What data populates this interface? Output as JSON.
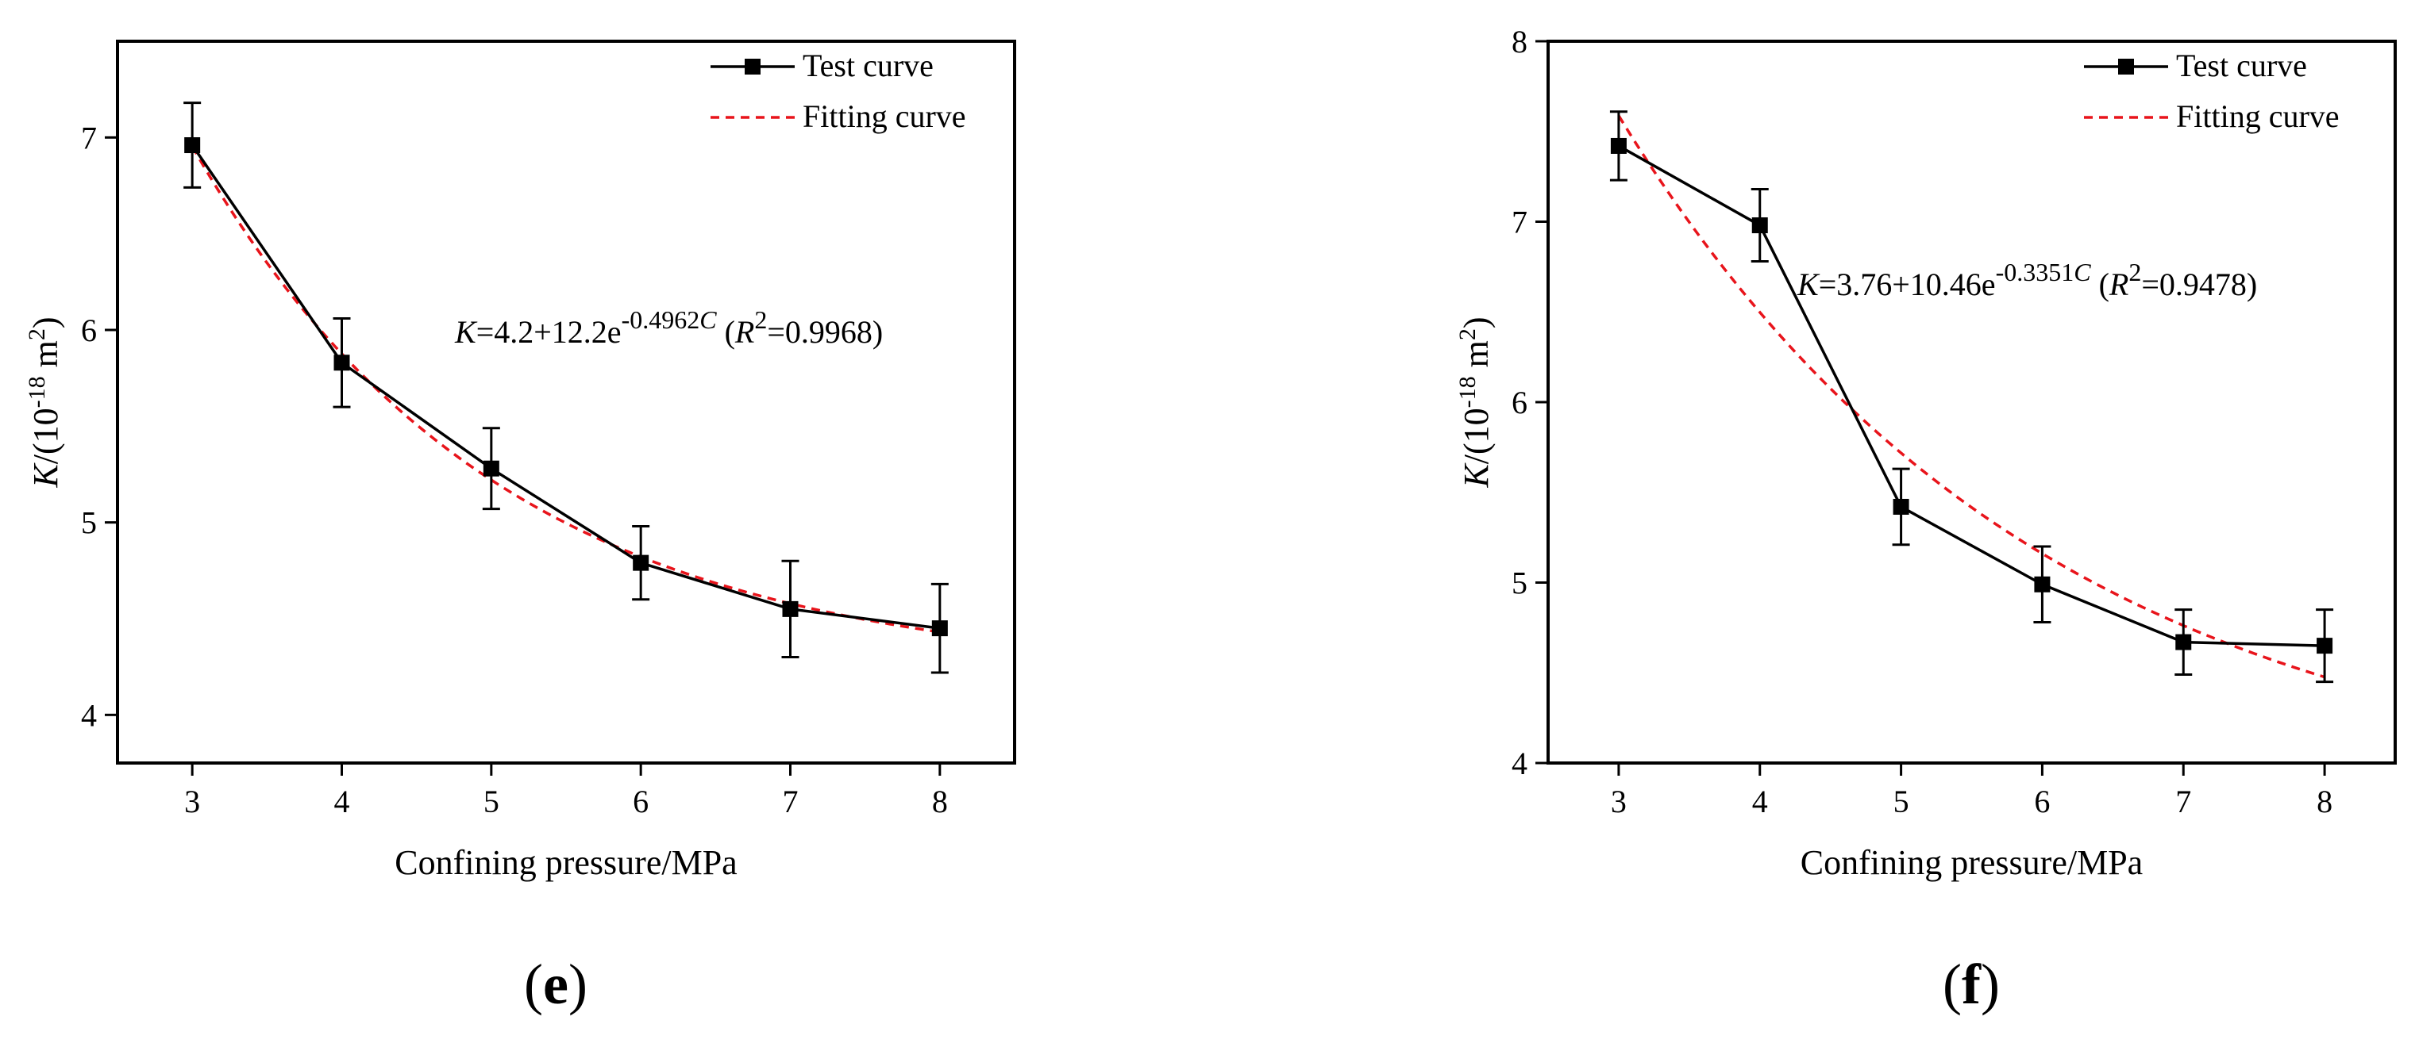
{
  "chart_data": [
    {
      "type": "line",
      "panel_label": "(e)",
      "xlabel": "Confining pressure/MPa",
      "ylabel": {
        "var": "K",
        "pre": "/(10",
        "exp": "-18",
        "mid": " m",
        "exp2": "2",
        "post": ")"
      },
      "xlim": [
        2.5,
        8.5
      ],
      "ylim": [
        3.75,
        7.5
      ],
      "xticks": [
        3,
        4,
        5,
        6,
        7,
        8
      ],
      "yticks": [
        4,
        5,
        6,
        7
      ],
      "legend_position": "top-right",
      "equation": {
        "var": "K",
        "base": "=4.2+12.2e",
        "exp": "-0.4962",
        "expvar": "C",
        "r2_open": " (",
        "r2_var": "R",
        "r2_exp": "2",
        "r2_value": "=0.9968)"
      },
      "series": [
        {
          "name": "Test curve",
          "color": "#000000",
          "style": "solid-square",
          "x": [
            3,
            4,
            5,
            6,
            7,
            8
          ],
          "y": [
            6.96,
            5.83,
            5.28,
            4.79,
            4.55,
            4.45
          ],
          "err": [
            0.22,
            0.23,
            0.21,
            0.19,
            0.25,
            0.23
          ]
        },
        {
          "name": "Fitting curve",
          "color": "#e8141b",
          "style": "dashed",
          "model": {
            "a": 4.2,
            "b": 12.2,
            "c": 0.4962
          }
        }
      ]
    },
    {
      "type": "line",
      "panel_label": "(f)",
      "xlabel": "Confining pressure/MPa",
      "ylabel": {
        "var": "K",
        "pre": "/(10",
        "exp": "-18",
        "mid": " m",
        "exp2": "2",
        "post": ")"
      },
      "xlim": [
        2.5,
        8.5
      ],
      "ylim": [
        4,
        8
      ],
      "xticks": [
        3,
        4,
        5,
        6,
        7,
        8
      ],
      "yticks": [
        4,
        5,
        6,
        7,
        8
      ],
      "legend_position": "top-right",
      "equation": {
        "var": "K",
        "base": "=3.76+10.46e",
        "exp": "-0.3351",
        "expvar": "C",
        "r2_open": " (",
        "r2_var": "R",
        "r2_exp": "2",
        "r2_value": "=0.9478)"
      },
      "series": [
        {
          "name": "Test curve",
          "color": "#000000",
          "style": "solid-square",
          "x": [
            3,
            4,
            5,
            6,
            7,
            8
          ],
          "y": [
            7.42,
            6.98,
            5.42,
            4.99,
            4.67,
            4.65
          ],
          "err": [
            0.19,
            0.2,
            0.21,
            0.21,
            0.18,
            0.2
          ]
        },
        {
          "name": "Fitting curve",
          "color": "#e8141b",
          "style": "dashed",
          "model": {
            "a": 3.76,
            "b": 10.46,
            "c": 0.3351
          }
        }
      ]
    }
  ]
}
